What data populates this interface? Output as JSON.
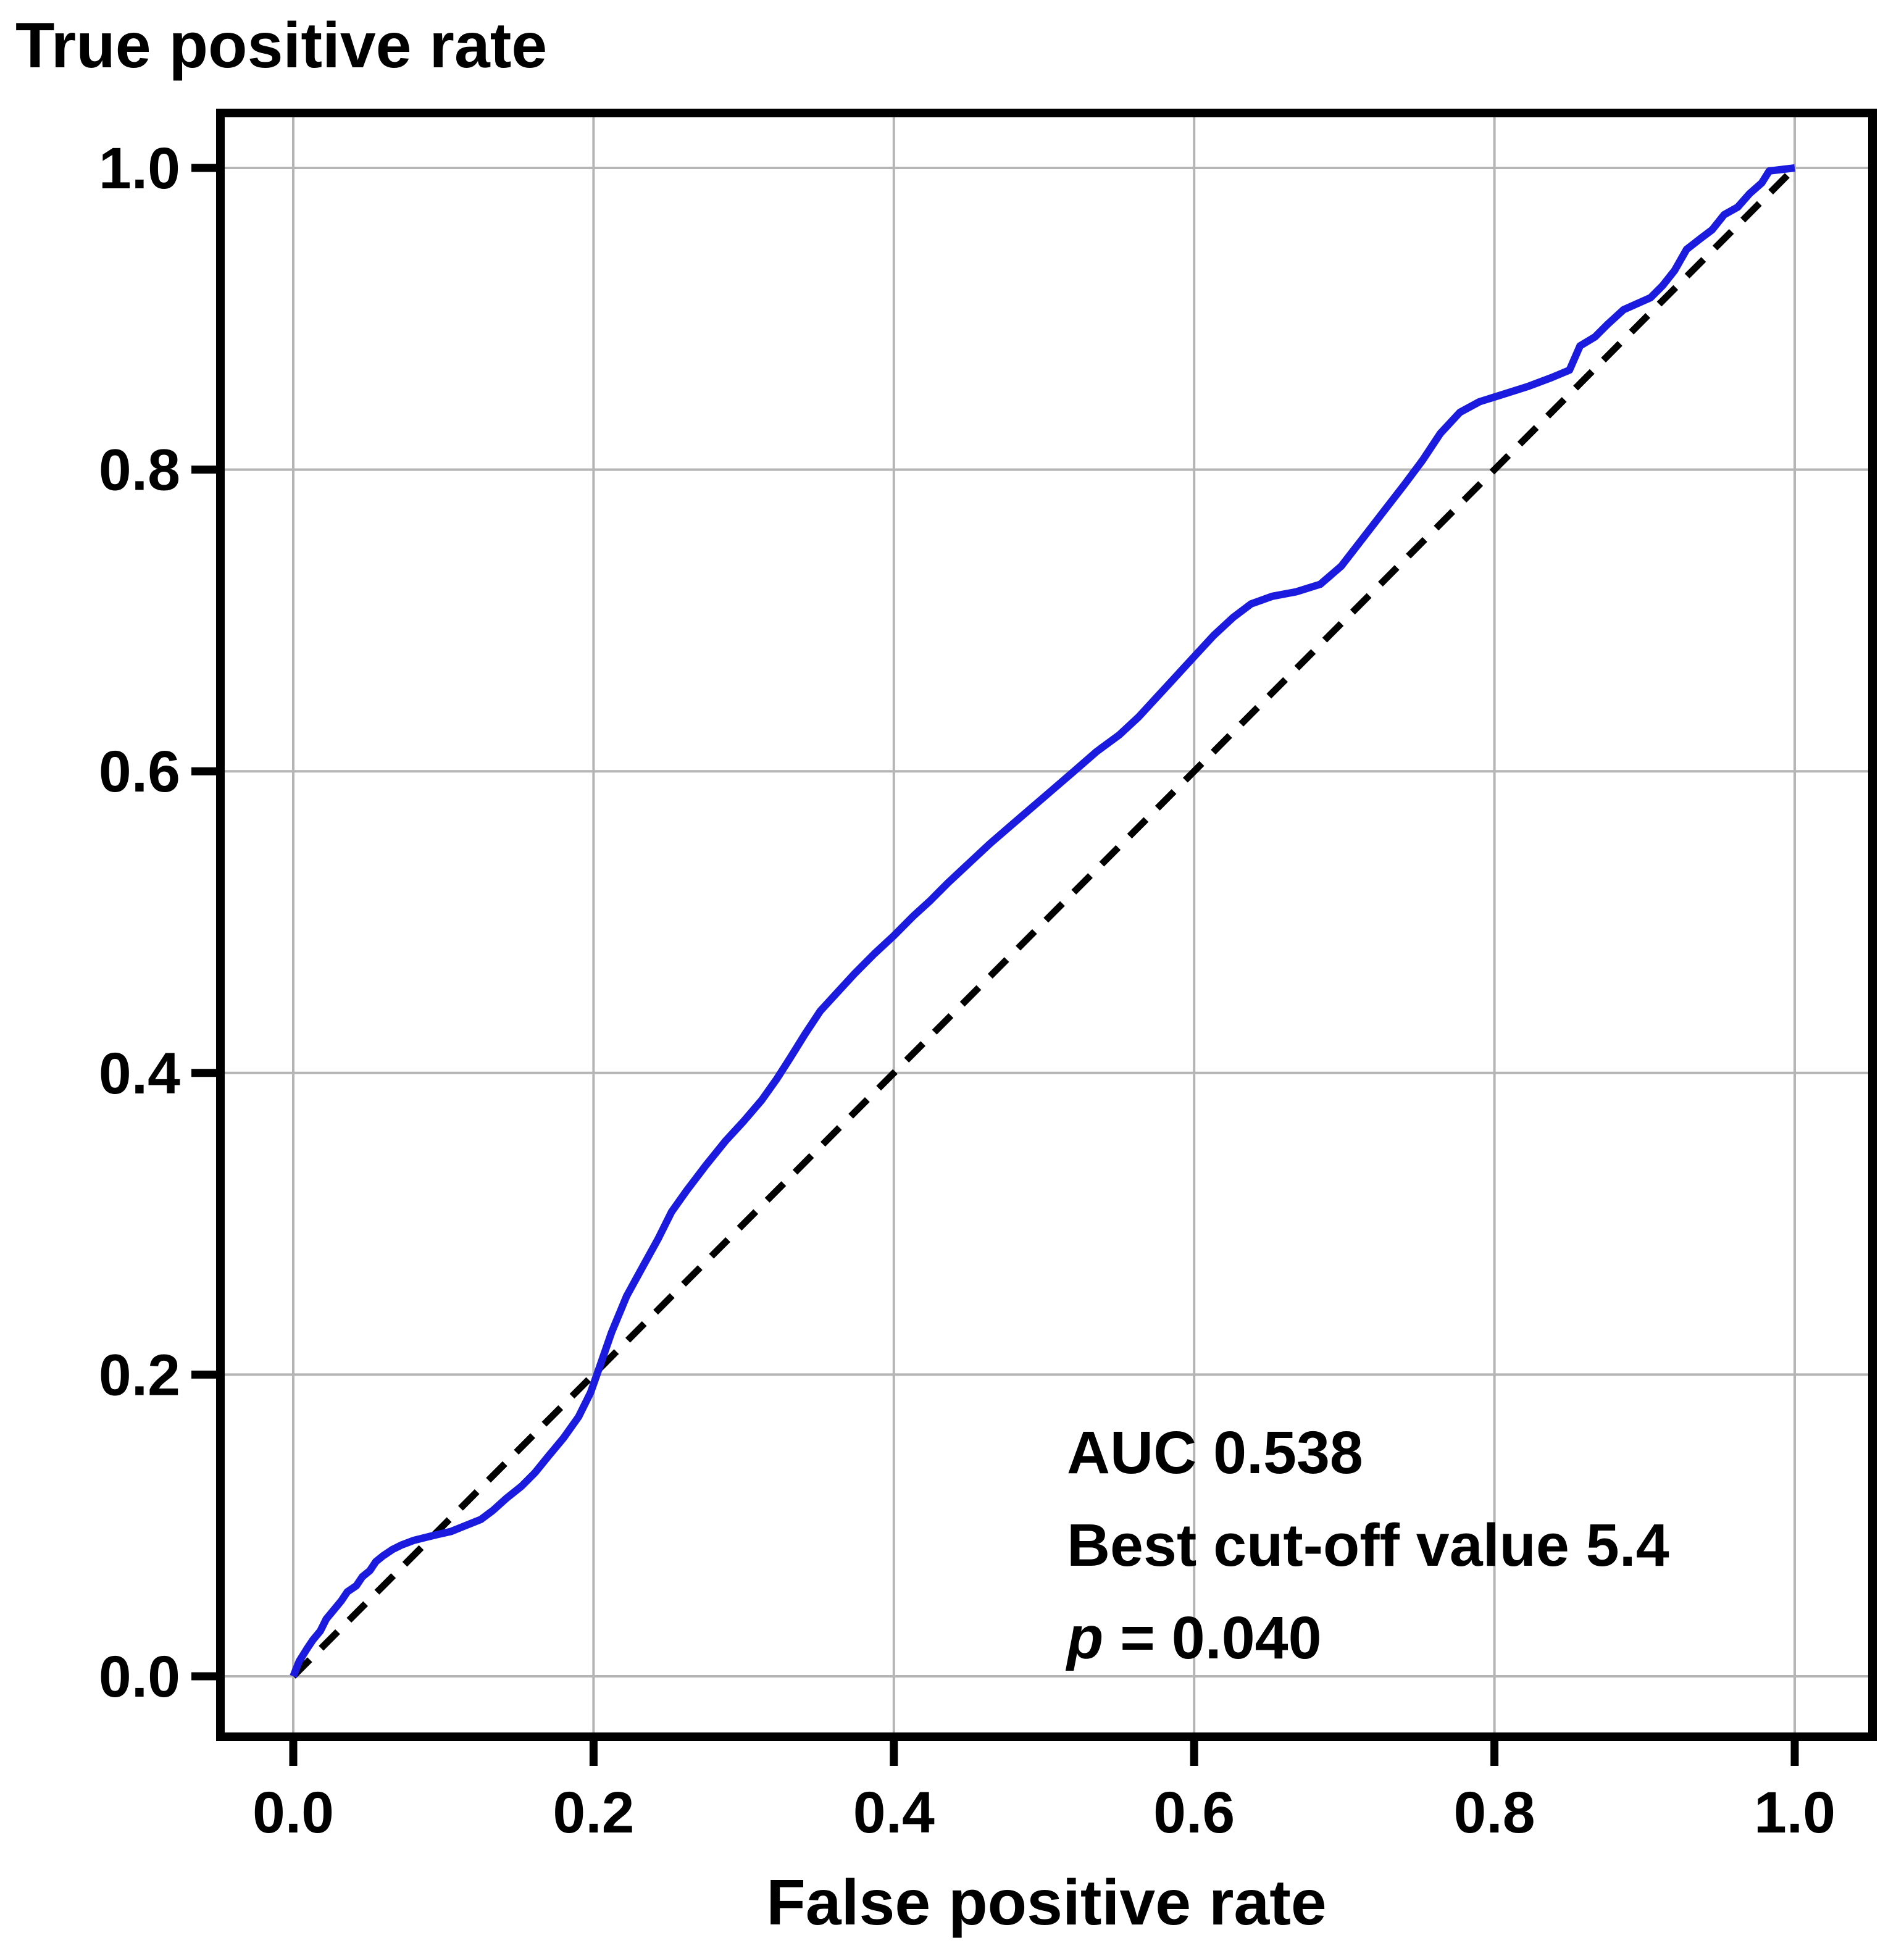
{
  "chart_data": {
    "type": "line",
    "title": "",
    "xlabel": "False positive rate",
    "ylabel": "True positive rate",
    "xlim": [
      0.0,
      1.0
    ],
    "ylim": [
      0.0,
      1.0
    ],
    "grid": true,
    "legend_position": "none",
    "x_ticks": [
      "0.0",
      "0.2",
      "0.4",
      "0.6",
      "0.8",
      "1.0"
    ],
    "y_ticks": [
      "0.0",
      "0.2",
      "0.4",
      "0.6",
      "0.8",
      "1.0"
    ],
    "series": [
      {
        "name": "chance-diagonal",
        "style": "dashed",
        "color": "#000000",
        "points": [
          [
            0.0,
            0.0
          ],
          [
            1.0,
            1.0
          ]
        ]
      },
      {
        "name": "roc-curve",
        "style": "solid",
        "color": "#1b1be0",
        "points": [
          [
            0.0,
            0.0
          ],
          [
            0.004,
            0.01
          ],
          [
            0.009,
            0.018
          ],
          [
            0.013,
            0.024
          ],
          [
            0.018,
            0.03
          ],
          [
            0.022,
            0.038
          ],
          [
            0.027,
            0.044
          ],
          [
            0.032,
            0.05
          ],
          [
            0.036,
            0.056
          ],
          [
            0.042,
            0.06
          ],
          [
            0.046,
            0.066
          ],
          [
            0.051,
            0.07
          ],
          [
            0.055,
            0.076
          ],
          [
            0.06,
            0.08
          ],
          [
            0.066,
            0.084
          ],
          [
            0.072,
            0.087
          ],
          [
            0.08,
            0.09
          ],
          [
            0.088,
            0.092
          ],
          [
            0.096,
            0.094
          ],
          [
            0.105,
            0.096
          ],
          [
            0.115,
            0.1
          ],
          [
            0.125,
            0.104
          ],
          [
            0.133,
            0.11
          ],
          [
            0.142,
            0.118
          ],
          [
            0.152,
            0.126
          ],
          [
            0.161,
            0.135
          ],
          [
            0.17,
            0.146
          ],
          [
            0.18,
            0.158
          ],
          [
            0.19,
            0.172
          ],
          [
            0.198,
            0.188
          ],
          [
            0.204,
            0.205
          ],
          [
            0.212,
            0.228
          ],
          [
            0.222,
            0.252
          ],
          [
            0.233,
            0.272
          ],
          [
            0.243,
            0.29
          ],
          [
            0.252,
            0.308
          ],
          [
            0.262,
            0.322
          ],
          [
            0.275,
            0.339
          ],
          [
            0.288,
            0.355
          ],
          [
            0.3,
            0.368
          ],
          [
            0.312,
            0.382
          ],
          [
            0.322,
            0.396
          ],
          [
            0.331,
            0.41
          ],
          [
            0.341,
            0.426
          ],
          [
            0.351,
            0.441
          ],
          [
            0.362,
            0.453
          ],
          [
            0.374,
            0.466
          ],
          [
            0.387,
            0.479
          ],
          [
            0.4,
            0.491
          ],
          [
            0.413,
            0.504
          ],
          [
            0.424,
            0.514
          ],
          [
            0.436,
            0.526
          ],
          [
            0.45,
            0.539
          ],
          [
            0.464,
            0.552
          ],
          [
            0.478,
            0.564
          ],
          [
            0.492,
            0.576
          ],
          [
            0.506,
            0.588
          ],
          [
            0.52,
            0.6
          ],
          [
            0.535,
            0.613
          ],
          [
            0.55,
            0.624
          ],
          [
            0.563,
            0.636
          ],
          [
            0.576,
            0.65
          ],
          [
            0.588,
            0.663
          ],
          [
            0.6,
            0.676
          ],
          [
            0.613,
            0.69
          ],
          [
            0.626,
            0.702
          ],
          [
            0.638,
            0.711
          ],
          [
            0.652,
            0.716
          ],
          [
            0.668,
            0.719
          ],
          [
            0.684,
            0.724
          ],
          [
            0.698,
            0.736
          ],
          [
            0.712,
            0.754
          ],
          [
            0.726,
            0.772
          ],
          [
            0.74,
            0.79
          ],
          [
            0.752,
            0.806
          ],
          [
            0.764,
            0.824
          ],
          [
            0.777,
            0.838
          ],
          [
            0.79,
            0.845
          ],
          [
            0.806,
            0.85
          ],
          [
            0.822,
            0.855
          ],
          [
            0.838,
            0.861
          ],
          [
            0.85,
            0.866
          ],
          [
            0.857,
            0.882
          ],
          [
            0.867,
            0.888
          ],
          [
            0.875,
            0.896
          ],
          [
            0.886,
            0.906
          ],
          [
            0.895,
            0.91
          ],
          [
            0.904,
            0.914
          ],
          [
            0.912,
            0.922
          ],
          [
            0.92,
            0.932
          ],
          [
            0.928,
            0.946
          ],
          [
            0.937,
            0.953
          ],
          [
            0.945,
            0.959
          ],
          [
            0.953,
            0.969
          ],
          [
            0.962,
            0.974
          ],
          [
            0.97,
            0.983
          ],
          [
            0.978,
            0.99
          ],
          [
            0.983,
            0.998
          ],
          [
            1.0,
            1.0
          ]
        ]
      }
    ],
    "stats": {
      "auc": 0.538,
      "best_cutoff": 5.4,
      "p_value": 0.04
    }
  },
  "annotation": {
    "auc_line": "AUC 0.538",
    "cutoff_line": "Best cut-off value 5.4",
    "p_symbol": "p",
    "p_rest": " = 0.040"
  },
  "colors": {
    "roc_curve": "#1b1be0",
    "diagonal": "#000000",
    "grid": "#b5b5b5",
    "frame": "#000000",
    "text": "#000000",
    "background": "#ffffff"
  }
}
